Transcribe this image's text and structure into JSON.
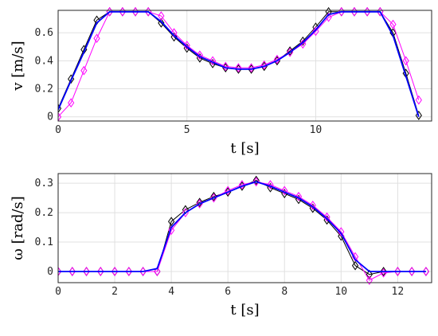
{
  "chart_data": [
    {
      "type": "line",
      "xlabel": "t [s]",
      "ylabel": "v [m/s]",
      "x": [
        0,
        0.5,
        1,
        1.5,
        2,
        2.5,
        3,
        3.5,
        4,
        4.5,
        5,
        5.5,
        6,
        6.5,
        7,
        7.5,
        8,
        8.5,
        9,
        9.5,
        10,
        10.5,
        11,
        11.5,
        12,
        12.5,
        13,
        13.5,
        14
      ],
      "series": [
        {
          "color": "#000000",
          "marker": "diamond",
          "values": [
            0.06,
            0.27,
            0.48,
            0.69,
            0.75,
            0.75,
            0.75,
            0.75,
            0.67,
            0.57,
            0.49,
            0.42,
            0.38,
            0.35,
            0.34,
            0.34,
            0.36,
            0.4,
            0.47,
            0.54,
            0.64,
            0.75,
            0.75,
            0.75,
            0.75,
            0.75,
            0.6,
            0.31,
            0.01
          ]
        },
        {
          "color": "#ff00ff",
          "marker": "diamond",
          "values": [
            0.0,
            0.1,
            0.33,
            0.56,
            0.75,
            0.75,
            0.75,
            0.75,
            0.72,
            0.6,
            0.51,
            0.44,
            0.4,
            0.36,
            0.35,
            0.35,
            0.37,
            0.41,
            0.46,
            0.52,
            0.61,
            0.71,
            0.75,
            0.75,
            0.75,
            0.75,
            0.66,
            0.4,
            0.12
          ]
        },
        {
          "color": "#0000ff",
          "marker": "none",
          "values": [
            0.05,
            0.26,
            0.46,
            0.67,
            0.75,
            0.75,
            0.75,
            0.75,
            0.68,
            0.58,
            0.5,
            0.43,
            0.39,
            0.35,
            0.34,
            0.34,
            0.36,
            0.4,
            0.46,
            0.53,
            0.62,
            0.73,
            0.75,
            0.75,
            0.75,
            0.75,
            0.58,
            0.29,
            0.0
          ]
        }
      ],
      "xlim": [
        0,
        14.5
      ],
      "ylim": [
        -0.03,
        0.76
      ],
      "xticks": [
        0,
        5,
        10
      ],
      "yticks": [
        0,
        0.2,
        0.4,
        0.6
      ],
      "grid": true
    },
    {
      "type": "line",
      "xlabel": "t [s]",
      "ylabel": "ω [rad/s]",
      "x": [
        0,
        0.5,
        1,
        1.5,
        2,
        2.5,
        3,
        3.5,
        4,
        4.5,
        5,
        5.5,
        6,
        6.5,
        7,
        7.5,
        8,
        8.5,
        9,
        9.5,
        10,
        10.5,
        11,
        11.5,
        12,
        12.5,
        13
      ],
      "series": [
        {
          "color": "#000000",
          "marker": "diamond",
          "values": [
            0,
            0,
            0,
            0,
            0,
            0,
            0,
            0.0,
            0.17,
            0.21,
            0.235,
            0.255,
            0.27,
            0.29,
            0.31,
            0.285,
            0.265,
            0.245,
            0.215,
            0.175,
            0.12,
            0.02,
            -0.01,
            0,
            0,
            0,
            0
          ]
        },
        {
          "color": "#ff00ff",
          "marker": "diamond",
          "values": [
            0,
            0,
            0,
            0,
            0,
            0,
            0,
            0.0,
            0.14,
            0.2,
            0.23,
            0.25,
            0.275,
            0.295,
            0.305,
            0.295,
            0.275,
            0.255,
            0.225,
            0.185,
            0.135,
            0.05,
            -0.03,
            -0.005,
            0,
            0,
            0
          ]
        },
        {
          "color": "#0000ff",
          "marker": "none",
          "values": [
            0,
            0,
            0,
            0,
            0,
            0,
            0,
            0.01,
            0.15,
            0.2,
            0.23,
            0.25,
            0.27,
            0.29,
            0.305,
            0.29,
            0.27,
            0.25,
            0.22,
            0.18,
            0.13,
            0.04,
            0,
            0,
            0,
            0,
            0
          ]
        }
      ],
      "xlim": [
        0,
        13.2
      ],
      "ylim": [
        -0.038,
        0.333
      ],
      "xticks": [
        0,
        2,
        4,
        6,
        8,
        10,
        12
      ],
      "yticks": [
        0,
        0.1,
        0.2,
        0.3
      ],
      "grid": true
    }
  ]
}
